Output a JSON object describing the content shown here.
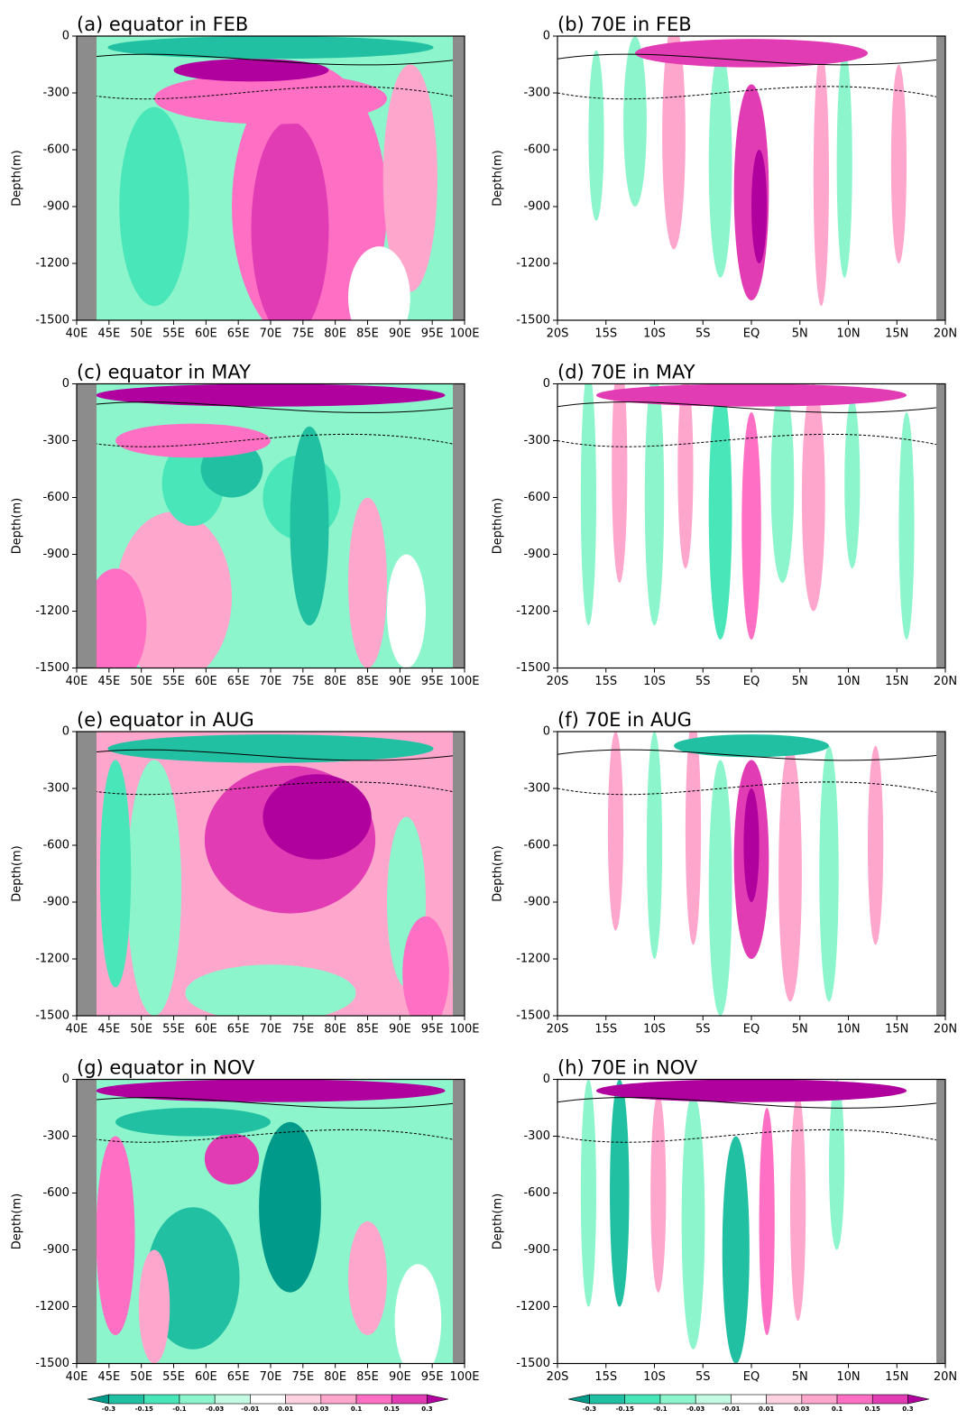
{
  "chart_data": [
    {
      "type": "contour",
      "title": "(a) equator in FEB",
      "ylabel": "Depth(m)",
      "xlim": [
        40,
        100
      ],
      "ylim": [
        -1500,
        0
      ],
      "xticks": [
        {
          "value": 40,
          "label": "40E"
        },
        {
          "value": 45,
          "label": "45E"
        },
        {
          "value": 50,
          "label": "50E"
        },
        {
          "value": 55,
          "label": "55E"
        },
        {
          "value": 60,
          "label": "60E"
        },
        {
          "value": 65,
          "label": "65E"
        },
        {
          "value": 70,
          "label": "70E"
        },
        {
          "value": 75,
          "label": "75E"
        },
        {
          "value": 80,
          "label": "80E"
        },
        {
          "value": 85,
          "label": "85E"
        },
        {
          "value": 90,
          "label": "90E"
        },
        {
          "value": 95,
          "label": "95E"
        },
        {
          "value": 100,
          "label": "100E"
        }
      ],
      "yticks": [
        0,
        -300,
        -600,
        -900,
        -1200,
        -1500
      ]
    },
    {
      "type": "contour",
      "title": "(b) 70E in FEB",
      "ylabel": "Depth(m)",
      "xlim": [
        -20,
        20
      ],
      "ylim": [
        -1500,
        0
      ],
      "xticks": [
        {
          "value": -20,
          "label": "20S"
        },
        {
          "value": -15,
          "label": "15S"
        },
        {
          "value": -10,
          "label": "10S"
        },
        {
          "value": -5,
          "label": "5S"
        },
        {
          "value": 0,
          "label": "EQ"
        },
        {
          "value": 5,
          "label": "5N"
        },
        {
          "value": 10,
          "label": "10N"
        },
        {
          "value": 15,
          "label": "15N"
        },
        {
          "value": 20,
          "label": "20N"
        }
      ],
      "yticks": [
        0,
        -300,
        -600,
        -900,
        -1200,
        -1500
      ]
    },
    {
      "type": "contour",
      "title": "(c) equator in MAY",
      "ylabel": "Depth(m)",
      "xlim": [
        40,
        100
      ],
      "ylim": [
        -1500,
        0
      ],
      "xticks": [
        {
          "value": 40,
          "label": "40E"
        },
        {
          "value": 45,
          "label": "45E"
        },
        {
          "value": 50,
          "label": "50E"
        },
        {
          "value": 55,
          "label": "55E"
        },
        {
          "value": 60,
          "label": "60E"
        },
        {
          "value": 65,
          "label": "65E"
        },
        {
          "value": 70,
          "label": "70E"
        },
        {
          "value": 75,
          "label": "75E"
        },
        {
          "value": 80,
          "label": "80E"
        },
        {
          "value": 85,
          "label": "85E"
        },
        {
          "value": 90,
          "label": "90E"
        },
        {
          "value": 95,
          "label": "95E"
        },
        {
          "value": 100,
          "label": "100E"
        }
      ],
      "yticks": [
        0,
        -300,
        -600,
        -900,
        -1200,
        -1500
      ]
    },
    {
      "type": "contour",
      "title": "(d) 70E in MAY",
      "ylabel": "Depth(m)",
      "xlim": [
        -20,
        20
      ],
      "ylim": [
        -1500,
        0
      ],
      "xticks": [
        {
          "value": -20,
          "label": "20S"
        },
        {
          "value": -15,
          "label": "15S"
        },
        {
          "value": -10,
          "label": "10S"
        },
        {
          "value": -5,
          "label": "5S"
        },
        {
          "value": 0,
          "label": "EQ"
        },
        {
          "value": 5,
          "label": "5N"
        },
        {
          "value": 10,
          "label": "10N"
        },
        {
          "value": 15,
          "label": "15N"
        },
        {
          "value": 20,
          "label": "20N"
        }
      ],
      "yticks": [
        0,
        -300,
        -600,
        -900,
        -1200,
        -1500
      ]
    },
    {
      "type": "contour",
      "title": "(e) equator in AUG",
      "ylabel": "Depth(m)",
      "xlim": [
        40,
        100
      ],
      "ylim": [
        -1500,
        0
      ],
      "xticks": [
        {
          "value": 40,
          "label": "40E"
        },
        {
          "value": 45,
          "label": "45E"
        },
        {
          "value": 50,
          "label": "50E"
        },
        {
          "value": 55,
          "label": "55E"
        },
        {
          "value": 60,
          "label": "60E"
        },
        {
          "value": 65,
          "label": "65E"
        },
        {
          "value": 70,
          "label": "70E"
        },
        {
          "value": 75,
          "label": "75E"
        },
        {
          "value": 80,
          "label": "80E"
        },
        {
          "value": 85,
          "label": "85E"
        },
        {
          "value": 90,
          "label": "90E"
        },
        {
          "value": 95,
          "label": "95E"
        },
        {
          "value": 100,
          "label": "100E"
        }
      ],
      "yticks": [
        0,
        -300,
        -600,
        -900,
        -1200,
        -1500
      ]
    },
    {
      "type": "contour",
      "title": "(f) 70E in AUG",
      "ylabel": "Depth(m)",
      "xlim": [
        -20,
        20
      ],
      "ylim": [
        -1500,
        0
      ],
      "xticks": [
        {
          "value": -20,
          "label": "20S"
        },
        {
          "value": -15,
          "label": "15S"
        },
        {
          "value": -10,
          "label": "10S"
        },
        {
          "value": -5,
          "label": "5S"
        },
        {
          "value": 0,
          "label": "EQ"
        },
        {
          "value": 5,
          "label": "5N"
        },
        {
          "value": 10,
          "label": "10N"
        },
        {
          "value": 15,
          "label": "15N"
        },
        {
          "value": 20,
          "label": "20N"
        }
      ],
      "yticks": [
        0,
        -300,
        -600,
        -900,
        -1200,
        -1500
      ]
    },
    {
      "type": "contour",
      "title": "(g) equator in NOV",
      "ylabel": "Depth(m)",
      "xlim": [
        40,
        100
      ],
      "ylim": [
        -1500,
        0
      ],
      "xticks": [
        {
          "value": 40,
          "label": "40E"
        },
        {
          "value": 45,
          "label": "45E"
        },
        {
          "value": 50,
          "label": "50E"
        },
        {
          "value": 55,
          "label": "55E"
        },
        {
          "value": 60,
          "label": "60E"
        },
        {
          "value": 65,
          "label": "65E"
        },
        {
          "value": 70,
          "label": "70E"
        },
        {
          "value": 75,
          "label": "75E"
        },
        {
          "value": 80,
          "label": "80E"
        },
        {
          "value": 85,
          "label": "85E"
        },
        {
          "value": 90,
          "label": "90E"
        },
        {
          "value": 95,
          "label": "95E"
        },
        {
          "value": 100,
          "label": "100E"
        }
      ],
      "yticks": [
        0,
        -300,
        -600,
        -900,
        -1200,
        -1500
      ]
    },
    {
      "type": "contour",
      "title": "(h) 70E in NOV",
      "ylabel": "Depth(m)",
      "xlim": [
        -20,
        20
      ],
      "ylim": [
        -1500,
        0
      ],
      "xticks": [
        {
          "value": -20,
          "label": "20S"
        },
        {
          "value": -15,
          "label": "15S"
        },
        {
          "value": -10,
          "label": "10S"
        },
        {
          "value": -5,
          "label": "5S"
        },
        {
          "value": 0,
          "label": "EQ"
        },
        {
          "value": 5,
          "label": "5N"
        },
        {
          "value": 10,
          "label": "10N"
        },
        {
          "value": 15,
          "label": "15N"
        },
        {
          "value": 20,
          "label": "20N"
        }
      ],
      "yticks": [
        0,
        -300,
        -600,
        -900,
        -1200,
        -1500
      ]
    }
  ],
  "colorbar": {
    "levels": [
      -0.3,
      -0.15,
      -0.1,
      -0.03,
      -0.01,
      0.01,
      0.03,
      0.1,
      0.15,
      0.3
    ],
    "colors": [
      "#009a8a",
      "#22c0a2",
      "#48e6b8",
      "#8cf5cc",
      "#c4fae2",
      "#ffffff",
      "#ffd2e2",
      "#ffa6cc",
      "#ff70c4",
      "#e23cb4",
      "#b0009e"
    ]
  }
}
